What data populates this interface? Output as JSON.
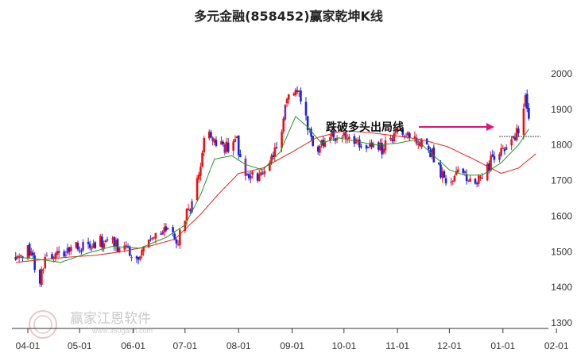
{
  "chart_data": {
    "type": "candlestick",
    "title": "多元金融(858452)赢家乾坤K线",
    "x_tick_labels": [
      "04-01",
      "05-01",
      "06-01",
      "07-01",
      "08-01",
      "09-01",
      "10-01",
      "11-01",
      "12-01",
      "01-01",
      "02-01"
    ],
    "y_tick_labels": [
      "1300",
      "1400",
      "1500",
      "1600",
      "1700",
      "1800",
      "1900",
      "2000"
    ],
    "y_ticks": [
      1300,
      1400,
      1500,
      1600,
      1700,
      1800,
      1900,
      2000
    ],
    "ylim": [
      1290,
      2060
    ],
    "annotation": "跌破多头出局线",
    "watermark": "赢家江恩软件",
    "watermark_url": "www.360gann.com",
    "colors": {
      "up": "#ee1111",
      "down": "#1a22dd",
      "purple": "#7a2fa0",
      "ma_short": "#229922",
      "ma_long": "#dd2222",
      "arrow": "#e0117a",
      "axis": "#333333"
    },
    "price_path_anchors": [
      [
        "03-25",
        1490
      ],
      [
        "04-03",
        1505
      ],
      [
        "04-07",
        1400
      ],
      [
        "04-12",
        1490
      ],
      [
        "04-20",
        1500
      ],
      [
        "04-30",
        1520
      ],
      [
        "05-07",
        1510
      ],
      [
        "05-14",
        1530
      ],
      [
        "05-21",
        1520
      ],
      [
        "05-28",
        1510
      ],
      [
        "06-04",
        1485
      ],
      [
        "06-09",
        1540
      ],
      [
        "06-16",
        1560
      ],
      [
        "06-23",
        1580
      ],
      [
        "06-26",
        1520
      ],
      [
        "07-01",
        1600
      ],
      [
        "07-05",
        1640
      ],
      [
        "07-10",
        1740
      ],
      [
        "07-13",
        1870
      ],
      [
        "07-17",
        1800
      ],
      [
        "07-24",
        1790
      ],
      [
        "07-31",
        1810
      ],
      [
        "08-04",
        1720
      ],
      [
        "08-11",
        1705
      ],
      [
        "08-18",
        1740
      ],
      [
        "08-25",
        1820
      ],
      [
        "08-29",
        1940
      ],
      [
        "09-04",
        1960
      ],
      [
        "09-08",
        1920
      ],
      [
        "09-10",
        1840
      ],
      [
        "09-15",
        1780
      ],
      [
        "09-22",
        1820
      ],
      [
        "09-29",
        1830
      ],
      [
        "10-06",
        1810
      ],
      [
        "10-12",
        1790
      ],
      [
        "10-18",
        1800
      ],
      [
        "10-24",
        1790
      ],
      [
        "11-02",
        1840
      ],
      [
        "11-09",
        1820
      ],
      [
        "11-16",
        1810
      ],
      [
        "11-23",
        1760
      ],
      [
        "11-28",
        1700
      ],
      [
        "12-05",
        1720
      ],
      [
        "12-12",
        1710
      ],
      [
        "12-19",
        1705
      ],
      [
        "12-26",
        1760
      ],
      [
        "12-31",
        1790
      ],
      [
        "01-06",
        1810
      ],
      [
        "01-09",
        1830
      ],
      [
        "01-12",
        1880
      ],
      [
        "01-14",
        1940
      ],
      [
        "01-16",
        1870
      ]
    ],
    "ma_short_path": [
      [
        "03-25",
        1485
      ],
      [
        "04-05",
        1480
      ],
      [
        "04-20",
        1470
      ],
      [
        "05-05",
        1495
      ],
      [
        "05-20",
        1515
      ],
      [
        "06-05",
        1510
      ],
      [
        "06-20",
        1540
      ],
      [
        "07-01",
        1575
      ],
      [
        "07-10",
        1660
      ],
      [
        "07-18",
        1760
      ],
      [
        "07-28",
        1770
      ],
      [
        "08-05",
        1745
      ],
      [
        "08-15",
        1730
      ],
      [
        "08-25",
        1780
      ],
      [
        "09-03",
        1880
      ],
      [
        "09-10",
        1850
      ],
      [
        "09-18",
        1805
      ],
      [
        "09-28",
        1820
      ],
      [
        "10-08",
        1810
      ],
      [
        "10-20",
        1800
      ],
      [
        "11-01",
        1805
      ],
      [
        "11-12",
        1815
      ],
      [
        "11-22",
        1770
      ],
      [
        "12-01",
        1730
      ],
      [
        "12-10",
        1715
      ],
      [
        "12-20",
        1715
      ],
      [
        "12-31",
        1750
      ],
      [
        "01-10",
        1800
      ],
      [
        "01-16",
        1845
      ]
    ],
    "ma_long_path": [
      [
        "03-25",
        1470
      ],
      [
        "04-10",
        1478
      ],
      [
        "04-25",
        1485
      ],
      [
        "05-10",
        1490
      ],
      [
        "05-25",
        1500
      ],
      [
        "06-10",
        1515
      ],
      [
        "06-25",
        1535
      ],
      [
        "07-10",
        1605
      ],
      [
        "07-20",
        1660
      ],
      [
        "08-01",
        1720
      ],
      [
        "08-15",
        1735
      ],
      [
        "09-01",
        1780
      ],
      [
        "09-15",
        1820
      ],
      [
        "10-01",
        1840
      ],
      [
        "10-15",
        1835
      ],
      [
        "11-01",
        1825
      ],
      [
        "11-15",
        1815
      ],
      [
        "11-30",
        1795
      ],
      [
        "12-15",
        1760
      ],
      [
        "12-31",
        1720
      ],
      [
        "01-10",
        1735
      ],
      [
        "01-20",
        1775
      ]
    ]
  }
}
